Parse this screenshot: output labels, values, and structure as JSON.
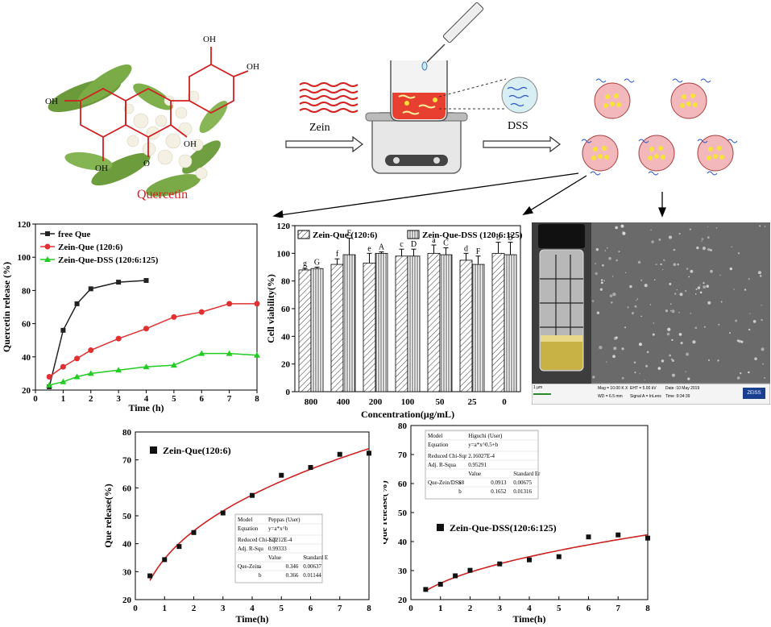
{
  "scheme": {
    "quercetin_label": "Quercetin",
    "oh": "OH",
    "o": "O",
    "zein_label": "Zein",
    "dss_label": "DSS"
  },
  "sem": {
    "scale_label": "1 µm",
    "mag": "Mag = 10.00 K X",
    "eht": "EHT = 5.00 kV",
    "date": "Date :10 May 2019",
    "wd": "WD = 6.5 mm",
    "signal": "Signal A = InLens",
    "time": "Time :9:34:39",
    "brand": "ZEISS"
  },
  "chart_data": [
    {
      "type": "line",
      "xlabel": "Time (h)",
      "ylabel": "Quercetin release (%)",
      "xlim": [
        0,
        8
      ],
      "ylim": [
        20,
        120
      ],
      "xticks": [
        0,
        1,
        2,
        3,
        4,
        5,
        6,
        7,
        8
      ],
      "yticks": [
        20,
        40,
        60,
        80,
        100,
        120
      ],
      "legend_position": "top-left",
      "series": [
        {
          "name": "free Que",
          "color": "#222222",
          "marker": "square",
          "x": [
            0.5,
            1,
            1.5,
            2,
            3,
            4
          ],
          "y": [
            22,
            56,
            72,
            81,
            85,
            86
          ]
        },
        {
          "name": "Zein-Que (120:6)",
          "color": "#e03030",
          "marker": "circle",
          "x": [
            0.5,
            1,
            1.5,
            2,
            3,
            4,
            5,
            6,
            7,
            8
          ],
          "y": [
            28,
            34,
            39,
            44,
            51,
            57,
            64,
            67,
            72,
            72
          ]
        },
        {
          "name": "Zein-Que-DSS (120:6:125)",
          "color": "#22cc22",
          "marker": "triangle",
          "x": [
            0.5,
            1,
            1.5,
            2,
            3,
            4,
            5,
            6,
            7,
            8
          ],
          "y": [
            23,
            25,
            28,
            30,
            32,
            34,
            35,
            42,
            42,
            41
          ]
        }
      ]
    },
    {
      "type": "bar",
      "xlabel": "Concentration(μg/mL)",
      "ylabel": "Cell viability(%)",
      "ylim": [
        0,
        120
      ],
      "yticks": [
        0,
        20,
        40,
        60,
        80,
        100,
        120
      ],
      "categories": [
        "800",
        "400",
        "200",
        "100",
        "50",
        "25",
        "0"
      ],
      "legend_position": "top",
      "series": [
        {
          "name": "Zein-Que (120:6)",
          "hatch": "diagonal",
          "values": [
            88,
            92,
            93,
            98,
            100,
            95,
            100
          ],
          "errors": [
            1,
            4,
            7,
            5,
            6,
            5,
            8
          ],
          "letters": [
            "g",
            "f",
            "e",
            "c",
            "a",
            "d",
            "b"
          ]
        },
        {
          "name": "Zein-Que-DSS (120:6:125)",
          "hatch": "vertical",
          "values": [
            89,
            99,
            100,
            98,
            99,
            92,
            99
          ],
          "errors": [
            1,
            12,
            1,
            5,
            5,
            6,
            9
          ],
          "letters": [
            "G",
            "E",
            "A",
            "D",
            "C",
            "F",
            "B"
          ]
        }
      ]
    },
    {
      "type": "scatter",
      "xlabel": "Time(h)",
      "ylabel": "Que release(%)",
      "xlim": [
        0,
        8
      ],
      "ylim": [
        20,
        80
      ],
      "xticks": [
        0,
        1,
        2,
        3,
        4,
        5,
        6,
        7,
        8
      ],
      "yticks": [
        20,
        30,
        40,
        50,
        60,
        70,
        80
      ],
      "legend": "Zein-Que(120:6)",
      "points": {
        "x": [
          0.5,
          1,
          1.5,
          2,
          3,
          4,
          5,
          6,
          7,
          8
        ],
        "y": [
          28.5,
          34.3,
          39,
          44,
          51,
          57.3,
          64.5,
          67.3,
          72,
          72.4
        ]
      },
      "fit": {
        "model": "peppas",
        "a": 0.346,
        "b": 0.366
      },
      "table": [
        [
          "Model",
          "Peppas (User)",
          ""
        ],
        [
          "Equation",
          "y=a*x^b",
          ""
        ],
        [
          "Reduced Chi-Sqr",
          "1.7212E-4",
          ""
        ],
        [
          "Adj. R-Squ",
          "0.99333",
          ""
        ],
        [
          "",
          "Value",
          "Standard E"
        ],
        [
          "Que-Zein",
          "a",
          "0.346",
          "0.00637"
        ],
        [
          "",
          "b",
          "0.366",
          "0.01144"
        ]
      ]
    },
    {
      "type": "scatter",
      "xlabel": "Time(h)",
      "ylabel": "Que release(%)",
      "xlim": [
        0,
        8
      ],
      "ylim": [
        20,
        80
      ],
      "xticks": [
        0,
        1,
        2,
        3,
        4,
        5,
        6,
        7,
        8
      ],
      "yticks": [
        20,
        30,
        40,
        50,
        60,
        70,
        80
      ],
      "legend": "Zein-Que-DSS(120:6:125)",
      "points": {
        "x": [
          0.5,
          1,
          1.5,
          2,
          3,
          4,
          5,
          6,
          7,
          8
        ],
        "y": [
          23.5,
          25.3,
          28.2,
          30.1,
          32.3,
          33.7,
          34.8,
          41.6,
          42.3,
          41.2
        ]
      },
      "fit": {
        "model": "higuchi",
        "a": 0.0913,
        "b": 0.1652
      },
      "table": [
        [
          "Model",
          "Higuchi (User)",
          ""
        ],
        [
          "Equation",
          "y=a*x^0.5+b",
          ""
        ],
        [
          "Reduced Chi-Sqr",
          "2.16027E-4",
          ""
        ],
        [
          "Adj. R-Squa",
          "0.95291",
          ""
        ],
        [
          "",
          "Value",
          "Standard Er"
        ],
        [
          "Que-Zein/DSS8",
          "a",
          "0.0913",
          "0.00675"
        ],
        [
          "",
          "b",
          "0.1652",
          "0.01316"
        ]
      ]
    }
  ]
}
